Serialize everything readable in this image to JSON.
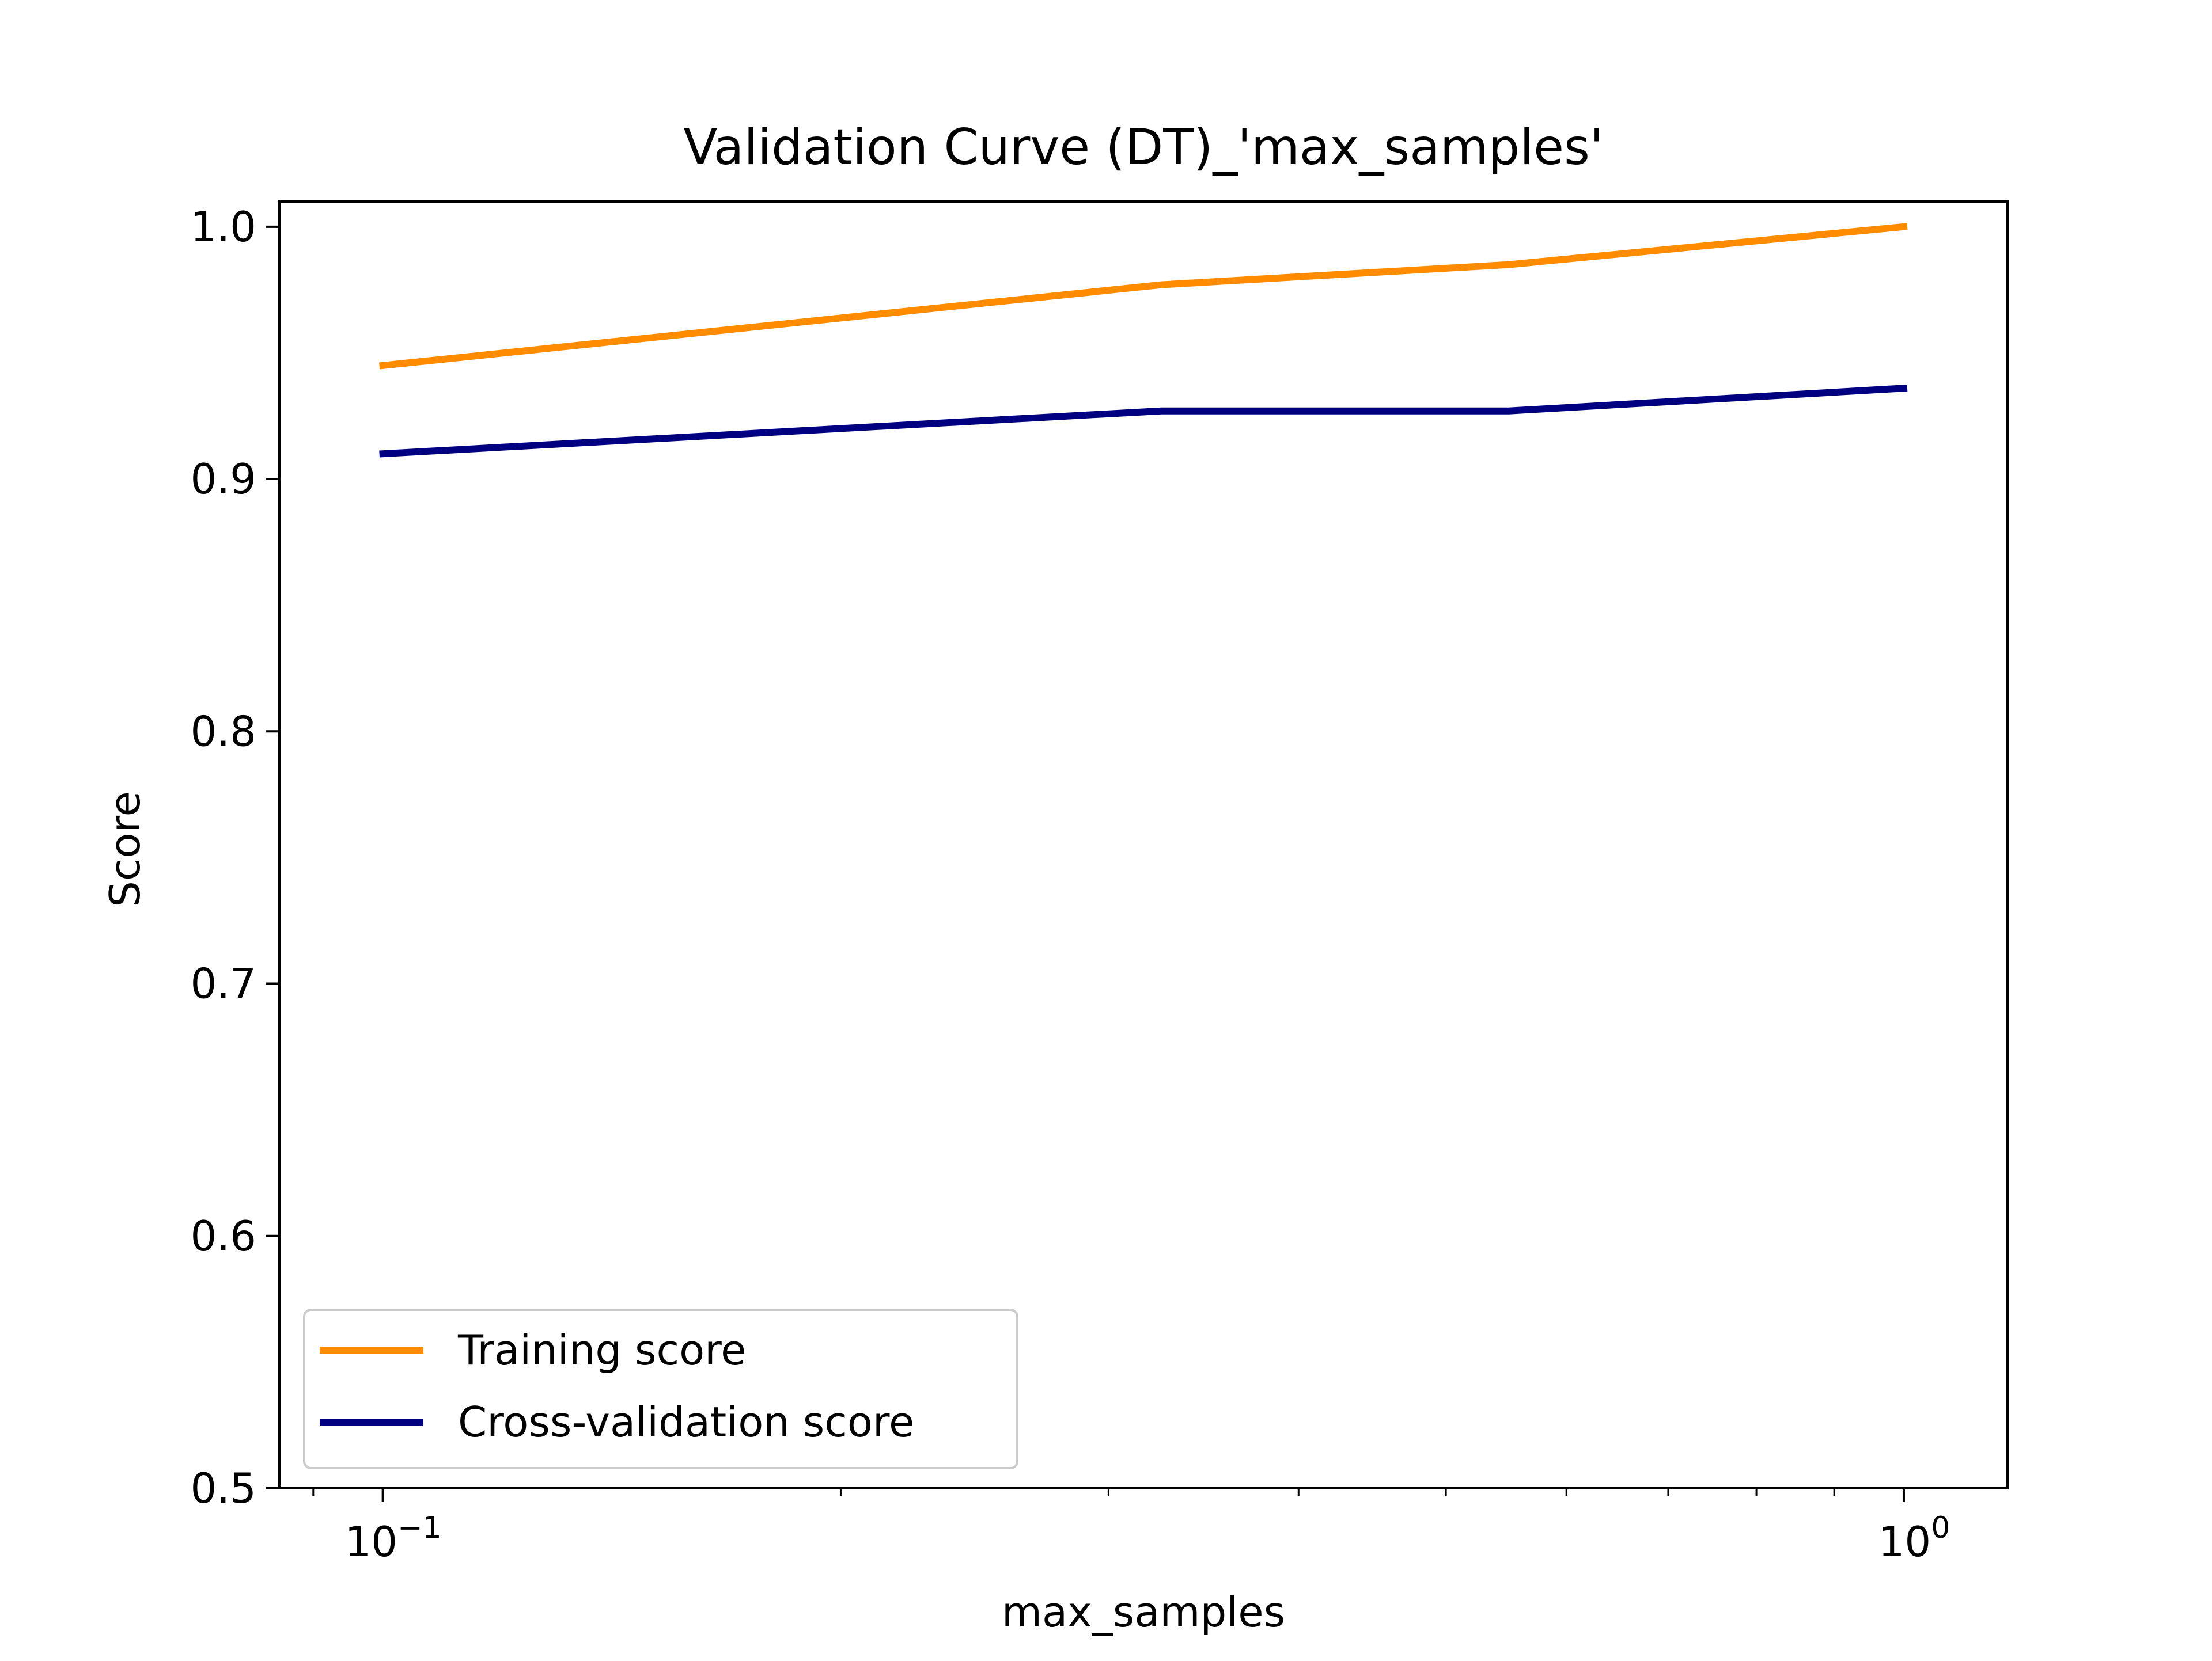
{
  "chart_data": {
    "type": "line",
    "title": "Validation Curve (DT)_'max_samples'",
    "xlabel": "max_samples",
    "ylabel": "Score",
    "x_scale": "log",
    "xlim": [
      0.0855,
      1.17
    ],
    "ylim": [
      0.5,
      1.01
    ],
    "grid": false,
    "legend_position": "lower-left",
    "x_major_ticks": [
      {
        "value": 0.1,
        "base": "10",
        "exponent": "−1"
      },
      {
        "value": 1.0,
        "base": "10",
        "exponent": "0"
      }
    ],
    "x_minor_ticks": [
      0.09,
      0.2,
      0.3,
      0.4,
      0.5,
      0.6,
      0.7,
      0.8,
      0.9
    ],
    "y_ticks": [
      {
        "value": 0.5,
        "label": "0.5"
      },
      {
        "value": 0.6,
        "label": "0.6"
      },
      {
        "value": 0.7,
        "label": "0.7"
      },
      {
        "value": 0.8,
        "label": "0.8"
      },
      {
        "value": 0.9,
        "label": "0.9"
      },
      {
        "value": 1.0,
        "label": "1.0"
      }
    ],
    "x": [
      0.1,
      0.325,
      0.55,
      1.0
    ],
    "series": [
      {
        "name": "Training score",
        "color": "#ff8c00",
        "values": [
          0.945,
          0.977,
          0.985,
          1.0
        ]
      },
      {
        "name": "Cross-validation score",
        "color": "#000080",
        "values": [
          0.91,
          0.927,
          0.927,
          0.936
        ]
      }
    ]
  }
}
